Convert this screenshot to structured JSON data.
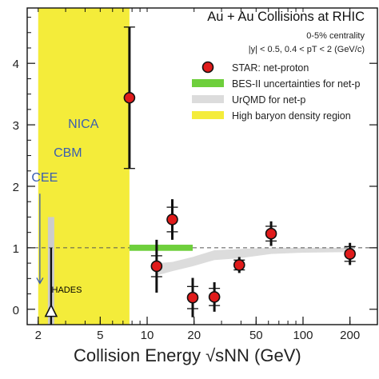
{
  "chart_data": {
    "type": "scatter",
    "title": "Au + Au Collisions at RHIC",
    "subtitle_lines": [
      "0-5% centrality",
      "|y| < 0.5, 0.4 < pT < 2 (GeV/c)"
    ],
    "xlabel": "Collision Energy √sNN (GeV)",
    "ylabel": "",
    "x_scale": "log",
    "xlim": [
      1.7,
      300
    ],
    "ylim": [
      -0.25,
      4.9
    ],
    "x_ticks": [
      2,
      5,
      10,
      20,
      50,
      100,
      200
    ],
    "y_ticks": [
      0,
      1,
      2,
      3,
      4
    ],
    "grid": false,
    "legend": {
      "placement": "top-right",
      "entries": [
        {
          "label": "STAR: net-proton",
          "marker": "red-circle"
        },
        {
          "label": "BES-II uncertainties for net-p",
          "marker": "green-band"
        },
        {
          "label": "UrQMD for net-p",
          "marker": "gray-band"
        },
        {
          "label": "High baryon density region",
          "marker": "yellow-band"
        }
      ]
    },
    "series": [
      {
        "name": "STAR: net-proton",
        "color": "#e01b1b",
        "points": [
          {
            "x": 7.7,
            "y": 3.44,
            "err": 1.15,
            "sys": 1.15
          },
          {
            "x": 11.5,
            "y": 0.7,
            "err": 0.43,
            "sys": 0.17
          },
          {
            "x": 14.5,
            "y": 1.46,
            "err": 0.33,
            "sys": 0.2
          },
          {
            "x": 19.6,
            "y": 0.19,
            "err": 0.32,
            "sys": 0.18
          },
          {
            "x": 27,
            "y": 0.2,
            "err": 0.24,
            "sys": 0.14
          },
          {
            "x": 39,
            "y": 0.72,
            "err": 0.13,
            "sys": 0.08
          },
          {
            "x": 62.4,
            "y": 1.23,
            "err": 0.2,
            "sys": 0.12
          },
          {
            "x": 200,
            "y": 0.9,
            "err": 0.18,
            "sys": 0.12
          }
        ]
      }
    ],
    "bands": {
      "high_baryon_density": {
        "x_range": [
          2.0,
          7.7
        ],
        "color": "#f4ec3a"
      },
      "bes2_uncertainty": {
        "x_range": [
          7.7,
          19.6
        ],
        "y": 1.0,
        "half_width": 0.05,
        "color": "#6ecf3c"
      },
      "urqmd": {
        "color": "#dcdcdc",
        "x": [
          11.5,
          14.5,
          19.6,
          27,
          39,
          62.4,
          100,
          200
        ],
        "y_low": [
          0.55,
          0.62,
          0.7,
          0.8,
          0.83,
          0.9,
          0.92,
          0.93
        ],
        "y_high": [
          0.75,
          0.77,
          0.85,
          0.96,
          0.98,
          1.0,
          1.0,
          1.0
        ]
      },
      "hades_band": {
        "x": 2.42,
        "y_range": [
          -0.25,
          1.5
        ],
        "color": "#cccccc"
      }
    },
    "reference_line": {
      "y": 1.0,
      "style": "dashed"
    },
    "annotations": [
      {
        "text": "NICA",
        "x": 3.9,
        "y": 2.95,
        "color": "#3a5db0"
      },
      {
        "text": "CBM",
        "x": 3.1,
        "y": 2.48,
        "color": "#3a5db0"
      },
      {
        "text": "CEE",
        "x": 2.2,
        "y": 2.08,
        "color": "#3a5db0"
      },
      {
        "text": "HADES",
        "x": 3.05,
        "y": 0.27,
        "color": "#000000"
      }
    ],
    "hades_point": {
      "x": 2.42,
      "y": -0.05,
      "upper_to": 1.0,
      "lower_to": -0.25
    },
    "cee_arrow": {
      "x": 2.05,
      "from_y": 1.88,
      "to_y": 0.42,
      "color": "#3a5db0"
    }
  }
}
